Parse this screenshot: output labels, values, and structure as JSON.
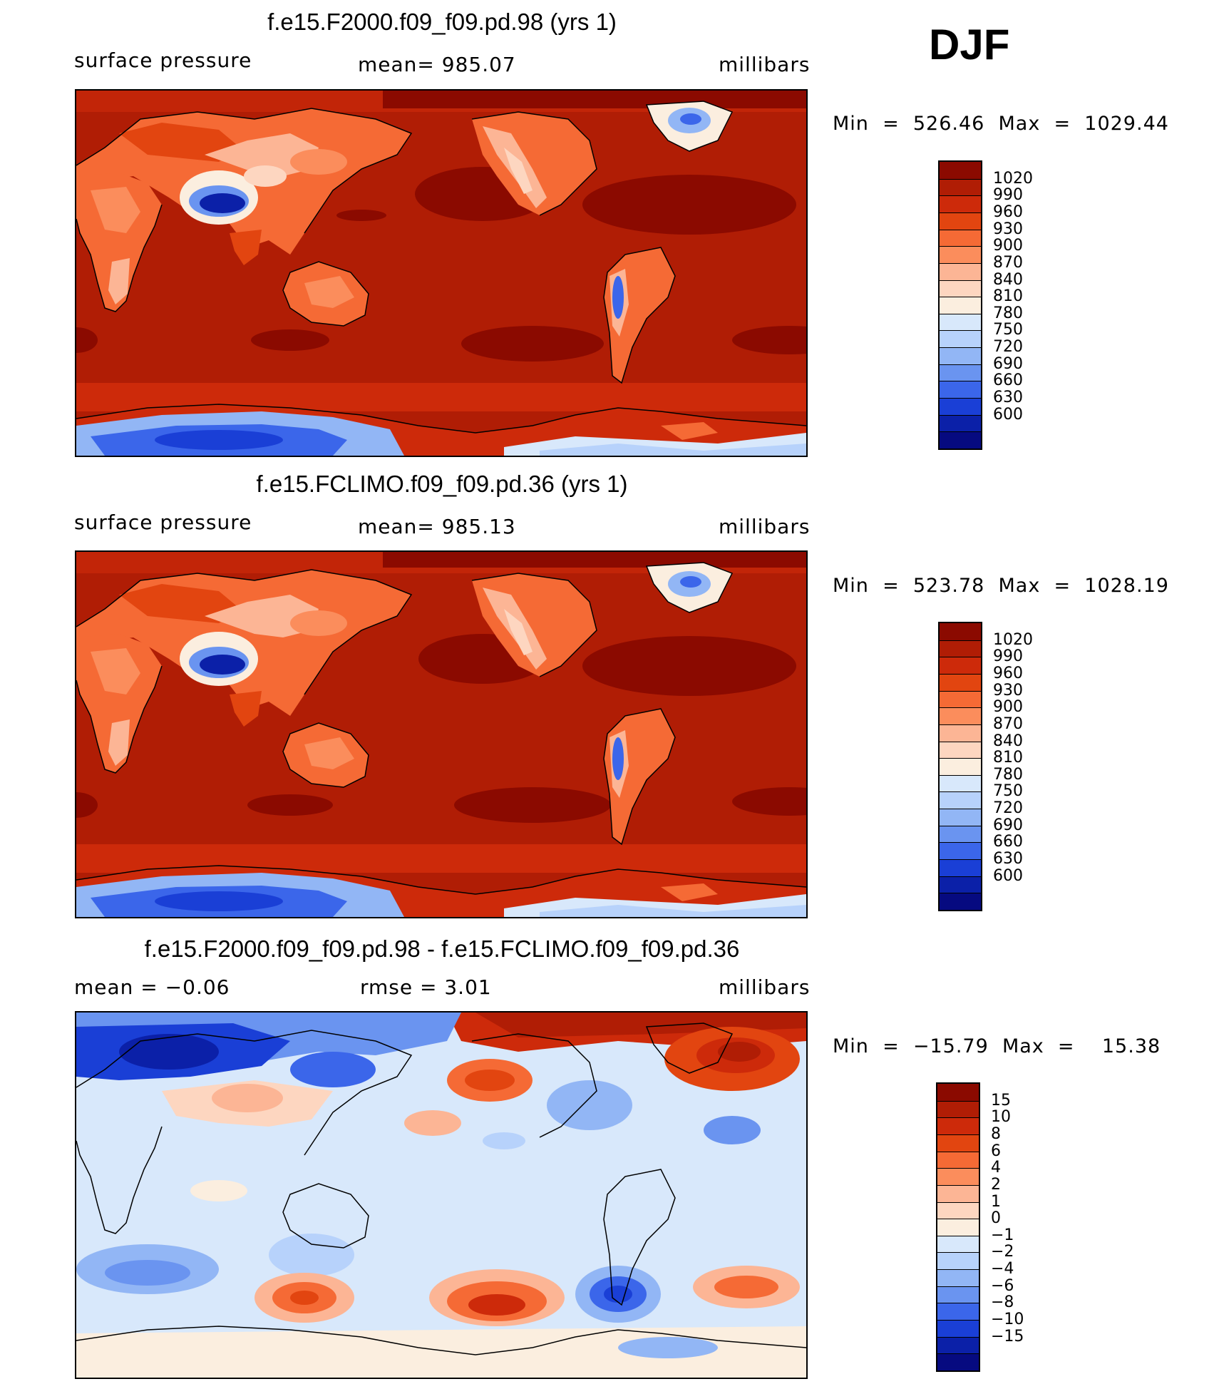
{
  "season": "DJF",
  "panels": [
    {
      "id": "test",
      "title": "f.e15.F2000.f09_f09.pd.98 (yrs 1)",
      "variable": "surface pressure",
      "mean_label": "mean=  985.07",
      "units": "millibars",
      "minmax": "Min  =  526.46  Max  =  1029.44",
      "colorbar": {
        "labels": [
          "1020",
          "990",
          "960",
          "930",
          "900",
          "870",
          "840",
          "810",
          "780",
          "750",
          "720",
          "690",
          "660",
          "630",
          "600"
        ],
        "colors": [
          "#8b0a00",
          "#b01d05",
          "#cd2a0a",
          "#e24510",
          "#f56a35",
          "#fb8d5c",
          "#fcb595",
          "#fdd6c0",
          "#fbeedf",
          "#d8e8fb",
          "#b7d2fb",
          "#92b6f5",
          "#6a94f0",
          "#3b66ea",
          "#1a3fd6",
          "#0b20a8",
          "#060a80"
        ]
      }
    },
    {
      "id": "control",
      "title": "f.e15.FCLIMO.f09_f09.pd.36 (yrs 1)",
      "variable": "surface pressure",
      "mean_label": "mean=  985.13",
      "units": "millibars",
      "minmax": "Min  =  523.78  Max  =  1028.19",
      "colorbar": {
        "labels": [
          "1020",
          "990",
          "960",
          "930",
          "900",
          "870",
          "840",
          "810",
          "780",
          "750",
          "720",
          "690",
          "660",
          "630",
          "600"
        ],
        "colors": [
          "#8b0a00",
          "#b01d05",
          "#cd2a0a",
          "#e24510",
          "#f56a35",
          "#fb8d5c",
          "#fcb595",
          "#fdd6c0",
          "#fbeedf",
          "#d8e8fb",
          "#b7d2fb",
          "#92b6f5",
          "#6a94f0",
          "#3b66ea",
          "#1a3fd6",
          "#0b20a8",
          "#060a80"
        ]
      }
    },
    {
      "id": "diff",
      "title": "f.e15.F2000.f09_f09.pd.98 - f.e15.FCLIMO.f09_f09.pd.36",
      "mean_label": "mean  =    −0.06",
      "rmse_label": "rmse  =     3.01",
      "units": "millibars",
      "minmax": "Min  =  −15.79  Max  =    15.38",
      "colorbar": {
        "labels": [
          "15",
          "10",
          "8",
          "6",
          "4",
          "2",
          "1",
          "0",
          "−1",
          "−2",
          "−4",
          "−6",
          "−8",
          "−10",
          "−15"
        ],
        "colors": [
          "#8b0a00",
          "#b01d05",
          "#cd2a0a",
          "#e24510",
          "#f56a35",
          "#fb8d5c",
          "#fcb595",
          "#fdd6c0",
          "#fbeedf",
          "#d8e8fb",
          "#b7d2fb",
          "#92b6f5",
          "#6a94f0",
          "#3b66ea",
          "#1a3fd6",
          "#0b20a8",
          "#060a80"
        ]
      }
    }
  ]
}
